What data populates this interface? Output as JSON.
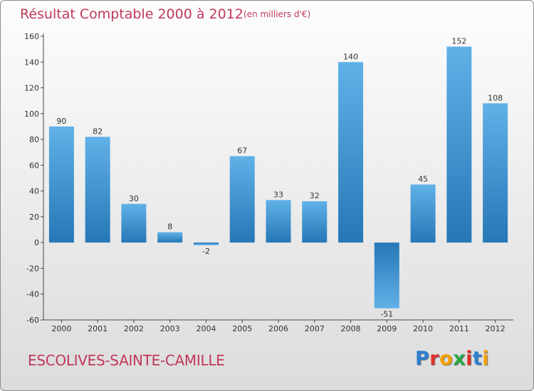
{
  "title": "Résultat Comptable 2000 à 2012",
  "subtitle": "(en milliers d'€)",
  "municipality": "ESCOLIVES-SAINTE-CAMILLE",
  "logo": {
    "text": "Proxiti",
    "colors": [
      "#2b7fd0",
      "#e0302c",
      "#f5a000",
      "#28a845",
      "#e0302c",
      "#2b7fd0",
      "#f5a000"
    ]
  },
  "colors": {
    "bar_top": "#61b1e8",
    "bar_bottom": "#2577b6",
    "label": "#c0395a"
  },
  "chart_data": {
    "type": "bar",
    "categories": [
      "2000",
      "2001",
      "2002",
      "2003",
      "2004",
      "2005",
      "2006",
      "2007",
      "2008",
      "2009",
      "2010",
      "2011",
      "2012"
    ],
    "values": [
      90,
      82,
      30,
      8,
      -2,
      67,
      33,
      32,
      140,
      -51,
      45,
      152,
      108
    ],
    "data_labels": [
      "90",
      "82",
      "30",
      "8",
      "-2",
      "67",
      "33",
      "32",
      "140",
      "-51",
      "45",
      "152",
      "108"
    ],
    "y_ticks": [
      "160",
      "140",
      "120",
      "100",
      "80",
      "60",
      "40",
      "20",
      "0",
      "-20",
      "-40",
      "-60"
    ],
    "title": "Résultat Comptable 2000 à 2012",
    "xlabel": "",
    "ylabel": "",
    "ylim": [
      -60,
      160
    ],
    "grid": false,
    "legend": "none"
  }
}
